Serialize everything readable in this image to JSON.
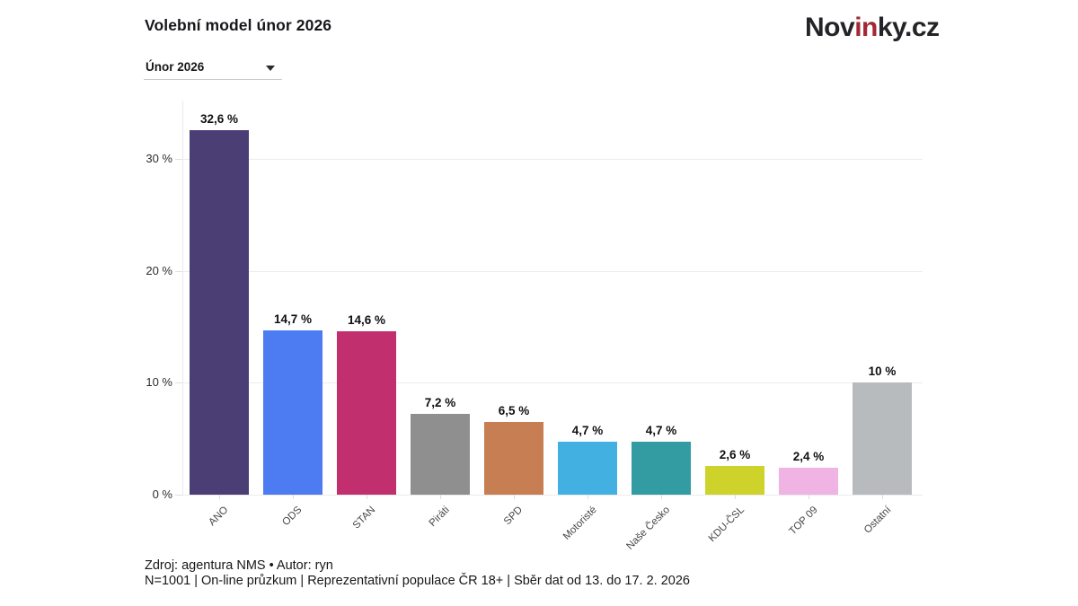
{
  "header": {
    "title": "Volební model únor 2026",
    "logo": {
      "part1": "Nov",
      "part2": "in",
      "part3": "ky.cz"
    },
    "dropdown": {
      "value": "Únor 2026"
    }
  },
  "chart_data": {
    "type": "bar",
    "title": "Volební model únor 2026",
    "categories": [
      "ANO",
      "ODS",
      "STAN",
      "Piráti",
      "SPD",
      "Motoristé",
      "Naše Česko",
      "KDU-ČSL",
      "TOP 09",
      "Ostatní"
    ],
    "values": [
      32.6,
      14.7,
      14.6,
      7.2,
      6.5,
      4.7,
      4.7,
      2.6,
      2.4,
      10
    ],
    "value_labels": [
      "32,6 %",
      "14,7 %",
      "14,6 %",
      "7,2 %",
      "6,5 %",
      "4,7 %",
      "4,7 %",
      "2,6 %",
      "2,4 %",
      "10 %"
    ],
    "bar_colors": [
      "#4a3e75",
      "#4c7bf2",
      "#c12f6e",
      "#8f8f8f",
      "#c87e53",
      "#42b1e2",
      "#339ba2",
      "#ced32c",
      "#efb3e4",
      "#b8bbbd"
    ],
    "ytick_values": [
      0,
      10,
      20,
      30
    ],
    "ytick_labels": [
      "0 %",
      "10 %",
      "20 %",
      "30 %"
    ],
    "ylim": [
      0,
      34
    ],
    "grid": true,
    "legend": "none"
  },
  "footer": {
    "line1": "Zdroj: agentura NMS • Autor: ryn",
    "line2": "N=1001 | On-line průzkum | Reprezentativní populace ČR 18+ | Sběr dat od 13. do 17. 2. 2026"
  }
}
